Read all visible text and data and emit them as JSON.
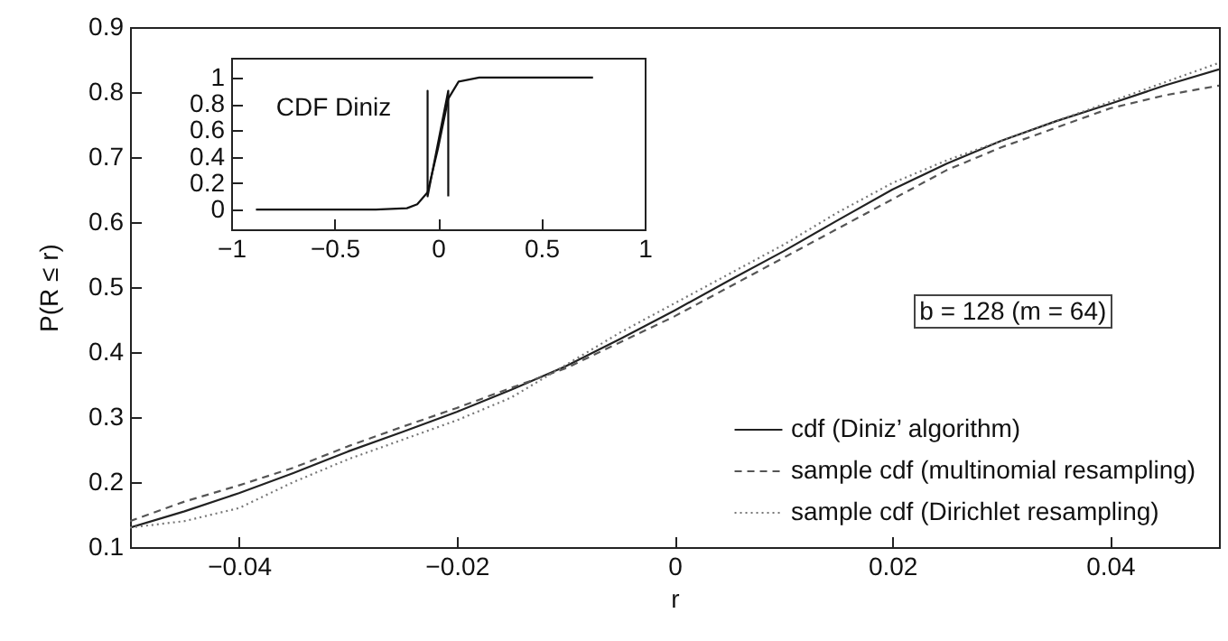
{
  "chart_data": [
    {
      "type": "line",
      "xlabel": "r",
      "ylabel": "P(R ≤ r)",
      "xlim": [
        -0.05,
        0.05
      ],
      "xticks": [
        -0.04,
        -0.02,
        0,
        0.02,
        0.04
      ],
      "ylim": [
        0.1,
        0.9
      ],
      "yticks": [
        0.1,
        0.2,
        0.3,
        0.4,
        0.5,
        0.6,
        0.7,
        0.8,
        0.9
      ],
      "legend": "bottom right",
      "annotations": [
        "b = 128 (m = 64)"
      ],
      "x": [
        -0.05,
        -0.045,
        -0.04,
        -0.035,
        -0.03,
        -0.025,
        -0.02,
        -0.015,
        -0.01,
        -0.005,
        0,
        0.005,
        0.01,
        0.015,
        0.02,
        0.025,
        0.03,
        0.035,
        0.04,
        0.045,
        0.05
      ],
      "series": [
        {
          "name": "cdf (Diniz’ algorithm)",
          "color": "#222222",
          "line_style": "solid",
          "values": [
            0.13,
            0.155,
            0.183,
            0.214,
            0.247,
            0.277,
            0.308,
            0.342,
            0.378,
            0.42,
            0.464,
            0.51,
            0.555,
            0.603,
            0.65,
            0.69,
            0.725,
            0.755,
            0.782,
            0.81,
            0.835
          ]
        },
        {
          "name": "sample cdf (multinomial resampling)",
          "color": "#555555",
          "line_style": "dashed",
          "values": [
            0.14,
            0.17,
            0.195,
            0.222,
            0.255,
            0.285,
            0.314,
            0.345,
            0.375,
            0.415,
            0.455,
            0.5,
            0.545,
            0.59,
            0.635,
            0.68,
            0.715,
            0.745,
            0.775,
            0.795,
            0.81
          ]
        },
        {
          "name": "sample cdf (Dirichlet resampling)",
          "color": "#777777",
          "line_style": "dotted",
          "values": [
            0.13,
            0.14,
            0.16,
            0.2,
            0.235,
            0.265,
            0.295,
            0.33,
            0.38,
            0.43,
            0.475,
            0.52,
            0.565,
            0.615,
            0.66,
            0.695,
            0.725,
            0.755,
            0.785,
            0.815,
            0.845
          ]
        }
      ]
    },
    {
      "type": "line",
      "xlim": [
        -1,
        1
      ],
      "xticks": [
        -1,
        -0.5,
        0,
        0.5,
        1
      ],
      "ylim": [
        -0.15,
        1.15
      ],
      "yticks": [
        0,
        0.2,
        0.4,
        0.6,
        0.8,
        1
      ],
      "legend": false,
      "annotations": [
        "CDF Diniz"
      ],
      "series": [
        {
          "color": "#111111",
          "line_style": "solid",
          "x": [
            -0.88,
            -0.3,
            -0.15,
            -0.1,
            -0.05,
            0,
            0.05,
            0.1,
            0.2,
            0.75
          ],
          "values": [
            0,
            0,
            0.01,
            0.04,
            0.13,
            0.46,
            0.84,
            0.97,
            1,
            1
          ]
        },
        {
          "type": "line",
          "color": "#111111",
          "line_style": "solid",
          "x": [
            -0.05,
            -0.05,
            0.05,
            0.05,
            -0.05
          ],
          "values": [
            0.1,
            0.9,
            0.9,
            0.1,
            0.1
          ]
        }
      ]
    }
  ]
}
